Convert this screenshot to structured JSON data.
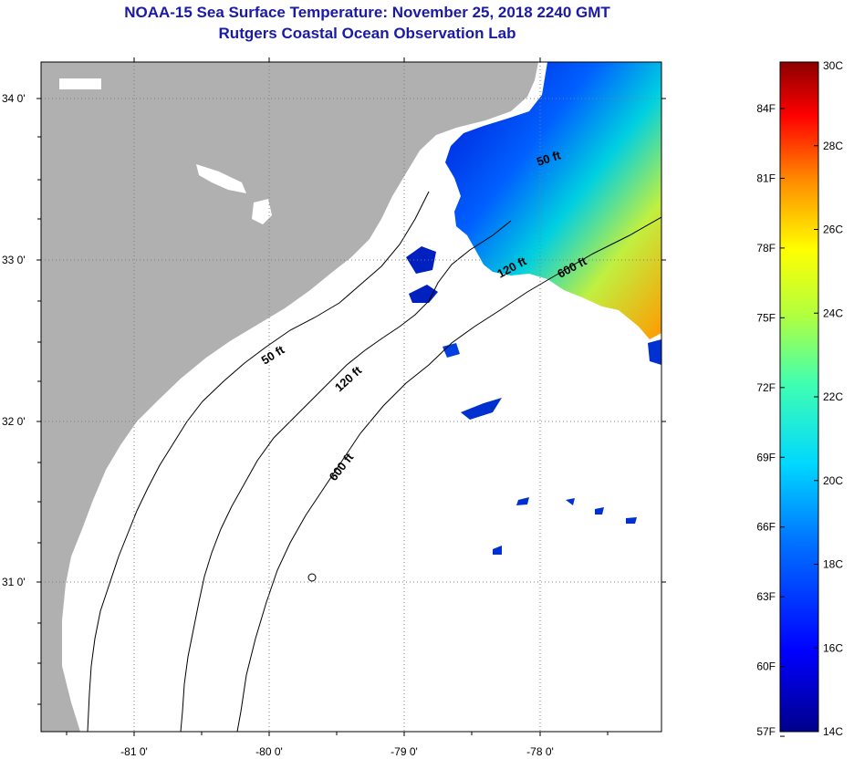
{
  "header": {
    "title": "NOAA-15 Sea Surface Temperature:  November 25, 2018 2240 GMT",
    "subtitle": "Rutgers Coastal Ocean Observation Lab"
  },
  "colors": {
    "title": "#1a1aa6",
    "land": "#b0b0b0",
    "ocean": "#ffffff",
    "grid": "#808080"
  },
  "map": {
    "lon_labels": [
      "-81 0'",
      "-80 0'",
      "-79 0'",
      "-78 0'"
    ],
    "lat_labels": [
      "34 0'",
      "33 0'",
      "32 0'",
      "31 0'"
    ],
    "contours": [
      "50 ft",
      "120 ft",
      "600 ft"
    ],
    "contour_labels": [
      {
        "text": "50 ft"
      },
      {
        "text": "120 ft"
      },
      {
        "text": "600 ft"
      },
      {
        "text": "120 ft"
      },
      {
        "text": "600 ft"
      },
      {
        "text": "50 ft"
      }
    ]
  },
  "colorbar": {
    "celsius_labels": [
      "30C",
      "28C",
      "26C",
      "24C",
      "22C",
      "20C",
      "18C",
      "16C",
      "14C"
    ],
    "fahrenheit_labels": [
      "84F",
      "81F",
      "78F",
      "75F",
      "72F",
      "69F",
      "66F",
      "63F",
      "60F",
      "57F"
    ],
    "range_c": [
      14,
      30
    ]
  }
}
